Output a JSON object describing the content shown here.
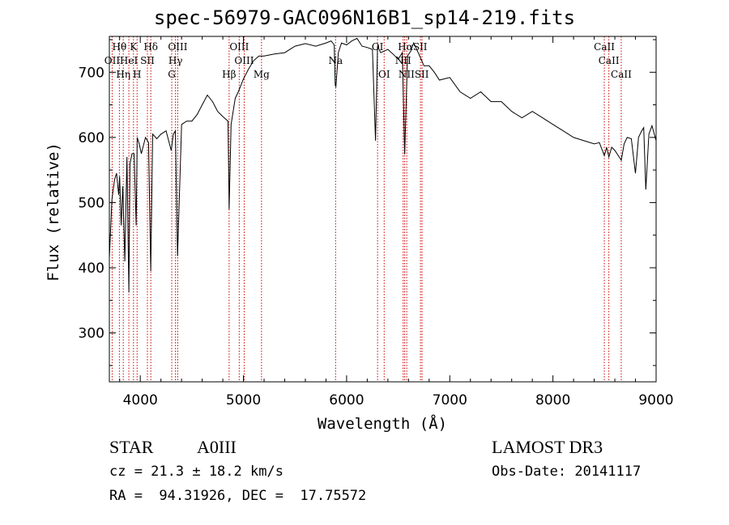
{
  "chart_data": {
    "type": "line",
    "title": "spec-56979-GAC096N16B1_sp14-219.fits",
    "xlabel": "Wavelength (Å)",
    "ylabel": "Flux (relative)",
    "xlim": [
      3700,
      9000
    ],
    "ylim": [
      225,
      755
    ],
    "x_ticks": [
      4000,
      5000,
      6000,
      7000,
      8000,
      9000
    ],
    "x_tick_labels": [
      "4000",
      "5000",
      "6000",
      "7000",
      "8000",
      "9000"
    ],
    "y_ticks": [
      300,
      400,
      500,
      600,
      700
    ],
    "y_tick_labels": [
      "300",
      "400",
      "500",
      "600",
      "700"
    ],
    "grid": false,
    "series": [
      {
        "name": "spectrum",
        "color": "#000000",
        "x": [
          3700,
          3725,
          3750,
          3770,
          3790,
          3800,
          3815,
          3830,
          3850,
          3870,
          3889,
          3900,
          3920,
          3940,
          3960,
          3970,
          3990,
          4010,
          4050,
          4080,
          4101,
          4120,
          4160,
          4200,
          4250,
          4300,
          4320,
          4340,
          4361,
          4400,
          4450,
          4500,
          4550,
          4600,
          4650,
          4700,
          4750,
          4800,
          4850,
          4861,
          4880,
          4920,
          4950,
          5000,
          5050,
          5100,
          5150,
          5200,
          5300,
          5400,
          5500,
          5600,
          5700,
          5800,
          5850,
          5880,
          5890,
          5896,
          5920,
          5950,
          6000,
          6050,
          6100,
          6150,
          6200,
          6250,
          6280,
          6300,
          6330,
          6400,
          6450,
          6500,
          6540,
          6563,
          6590,
          6620,
          6650,
          6700,
          6750,
          6800,
          6850,
          6900,
          6950,
          7000,
          7100,
          7200,
          7300,
          7400,
          7500,
          7600,
          7700,
          7800,
          7900,
          8000,
          8100,
          8200,
          8300,
          8400,
          8450,
          8498,
          8520,
          8542,
          8570,
          8600,
          8662,
          8690,
          8720,
          8760,
          8800,
          8830,
          8860,
          8880,
          8900,
          8930,
          8960,
          9000
        ],
        "values": [
          415,
          505,
          535,
          545,
          512,
          540,
          465,
          525,
          410,
          570,
          362,
          560,
          575,
          575,
          465,
          600,
          590,
          575,
          600,
          592,
          395,
          605,
          598,
          605,
          610,
          580,
          605,
          610,
          418,
          620,
          625,
          625,
          635,
          650,
          665,
          655,
          640,
          632,
          625,
          490,
          620,
          660,
          670,
          690,
          705,
          718,
          725,
          725,
          728,
          730,
          740,
          744,
          740,
          745,
          748,
          742,
          680,
          678,
          730,
          745,
          742,
          748,
          752,
          740,
          738,
          735,
          595,
          740,
          730,
          735,
          728,
          720,
          730,
          574,
          725,
          732,
          745,
          728,
          710,
          710,
          700,
          688,
          690,
          692,
          670,
          660,
          670,
          655,
          655,
          640,
          630,
          640,
          630,
          620,
          610,
          600,
          595,
          590,
          592,
          572,
          585,
          570,
          585,
          580,
          565,
          590,
          600,
          598,
          545,
          600,
          610,
          615,
          520,
          605,
          618,
          595
        ]
      }
    ],
    "lines": [
      {
        "label": "Hθ",
        "x": 3797
      },
      {
        "label": "OII",
        "x": 3727
      },
      {
        "label": "Hη",
        "x": 3835
      },
      {
        "label": "K",
        "x": 3934
      },
      {
        "label": "HeI",
        "x": 3889
      },
      {
        "label": "H",
        "x": 3969
      },
      {
        "label": "SII",
        "x": 4069
      },
      {
        "label": "Hδ",
        "x": 4102
      },
      {
        "label": "OIII",
        "x": 4363
      },
      {
        "label": "Hγ",
        "x": 4341
      },
      {
        "label": "G",
        "x": 4305
      },
      {
        "label": "Hβ",
        "x": 4861
      },
      {
        "label": "OIII",
        "x": 4959
      },
      {
        "label": "OIII",
        "x": 5007
      },
      {
        "label": "Mg",
        "x": 5175
      },
      {
        "label": "Na",
        "x": 5893
      },
      {
        "label": "OI",
        "x": 6300
      },
      {
        "label": "OI",
        "x": 6364
      },
      {
        "label": "Hα",
        "x": 6563
      },
      {
        "label": "SII",
        "x": 6716
      },
      {
        "label": "NII",
        "x": 6548
      },
      {
        "label": "NII",
        "x": 6583
      },
      {
        "label": "SII",
        "x": 6731
      },
      {
        "label": "CaII",
        "x": 8498
      },
      {
        "label": "CaII",
        "x": 8542
      },
      {
        "label": "CaII",
        "x": 8662
      }
    ],
    "line_label_rows": [
      {
        "row": 1,
        "items": [
          {
            "text": "Hθ",
            "x": 3797
          },
          {
            "text": "K",
            "x": 3934
          },
          {
            "text": "Hδ",
            "x": 4102
          },
          {
            "text": "OIII",
            "x": 4363
          },
          {
            "text": "OIII",
            "x": 4959
          },
          {
            "text": "OI",
            "x": 6300
          },
          {
            "text": "HαSII",
            "x": 6640
          },
          {
            "text": "CaII",
            "x": 8498
          }
        ]
      },
      {
        "row": 2,
        "items": [
          {
            "text": "OII",
            "x": 3727
          },
          {
            "text": "HeI",
            "x": 3889
          },
          {
            "text": "SII",
            "x": 4069
          },
          {
            "text": "Hγ",
            "x": 4341
          },
          {
            "text": "OIII",
            "x": 5007
          },
          {
            "text": "Na",
            "x": 5893
          },
          {
            "text": "NII",
            "x": 6548
          },
          {
            "text": "CaII",
            "x": 8542
          }
        ]
      },
      {
        "row": 3,
        "items": [
          {
            "text": "Hη",
            "x": 3835
          },
          {
            "text": "H",
            "x": 3969
          },
          {
            "text": "G",
            "x": 4305
          },
          {
            "text": "Hβ",
            "x": 4861
          },
          {
            "text": "Mg",
            "x": 5175
          },
          {
            "text": "OI",
            "x": 6364
          },
          {
            "text": "NIISII",
            "x": 6650
          },
          {
            "text": "CaII",
            "x": 8662
          }
        ]
      }
    ]
  },
  "info": {
    "class_label": "STAR",
    "subclass": "A0III",
    "survey": "LAMOST DR3",
    "cz_line": "cz = 21.3 ± 18.2 km/s",
    "obs_date_line": "Obs-Date: 20141117",
    "coords_line": "RA =  94.31926, DEC =  17.75572"
  },
  "colors": {
    "spectrum": "#000000",
    "line_marker": "#cc0000",
    "axes": "#000000"
  }
}
